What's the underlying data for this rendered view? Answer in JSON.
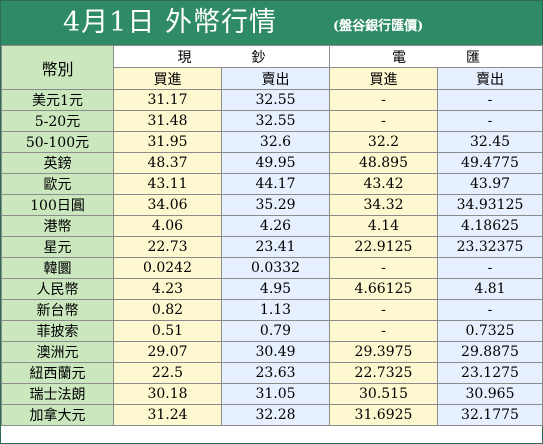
{
  "title": {
    "main": "4月1日 外幣行情",
    "source": "(盤谷銀行匯價)"
  },
  "header": {
    "currency_col": "幣別",
    "group_cash": "現鈔",
    "group_wire": "電匯",
    "buy": "買進",
    "sell": "賣出"
  },
  "rows": [
    {
      "currency": "美元1元",
      "cash_buy": "31.17",
      "cash_sell": "32.55",
      "wire_buy": "-",
      "wire_sell": "-"
    },
    {
      "currency": "5-20元",
      "cash_buy": "31.48",
      "cash_sell": "32.55",
      "wire_buy": "-",
      "wire_sell": "-"
    },
    {
      "currency": "50-100元",
      "cash_buy": "31.95",
      "cash_sell": "32.6",
      "wire_buy": "32.2",
      "wire_sell": "32.45"
    },
    {
      "currency": "英鎊",
      "cash_buy": "48.37",
      "cash_sell": "49.95",
      "wire_buy": "48.895",
      "wire_sell": "49.4775"
    },
    {
      "currency": "歐元",
      "cash_buy": "43.11",
      "cash_sell": "44.17",
      "wire_buy": "43.42",
      "wire_sell": "43.97"
    },
    {
      "currency": "100日圓",
      "cash_buy": "34.06",
      "cash_sell": "35.29",
      "wire_buy": "34.32",
      "wire_sell": "34.93125"
    },
    {
      "currency": "港幣",
      "cash_buy": "4.06",
      "cash_sell": "4.26",
      "wire_buy": "4.14",
      "wire_sell": "4.18625"
    },
    {
      "currency": "星元",
      "cash_buy": "22.73",
      "cash_sell": "23.41",
      "wire_buy": "22.9125",
      "wire_sell": "23.32375"
    },
    {
      "currency": "韓圜",
      "cash_buy": "0.0242",
      "cash_sell": "0.0332",
      "wire_buy": "-",
      "wire_sell": "-"
    },
    {
      "currency": "人民幣",
      "cash_buy": "4.23",
      "cash_sell": "4.95",
      "wire_buy": "4.66125",
      "wire_sell": "4.81"
    },
    {
      "currency": "新台幣",
      "cash_buy": "0.82",
      "cash_sell": "1.13",
      "wire_buy": "-",
      "wire_sell": "-"
    },
    {
      "currency": "菲披索",
      "cash_buy": "0.51",
      "cash_sell": "0.79",
      "wire_buy": "-",
      "wire_sell": "0.7325"
    },
    {
      "currency": "澳洲元",
      "cash_buy": "29.07",
      "cash_sell": "30.49",
      "wire_buy": "29.3975",
      "wire_sell": "29.8875"
    },
    {
      "currency": "紐西蘭元",
      "cash_buy": "22.5",
      "cash_sell": "23.63",
      "wire_buy": "22.7325",
      "wire_sell": "23.1275"
    },
    {
      "currency": "瑞士法朗",
      "cash_buy": "30.18",
      "cash_sell": "31.05",
      "wire_buy": "30.515",
      "wire_sell": "30.965"
    },
    {
      "currency": "加拿大元",
      "cash_buy": "31.24",
      "cash_sell": "32.28",
      "wire_buy": "31.6925",
      "wire_sell": "32.1775"
    }
  ]
}
